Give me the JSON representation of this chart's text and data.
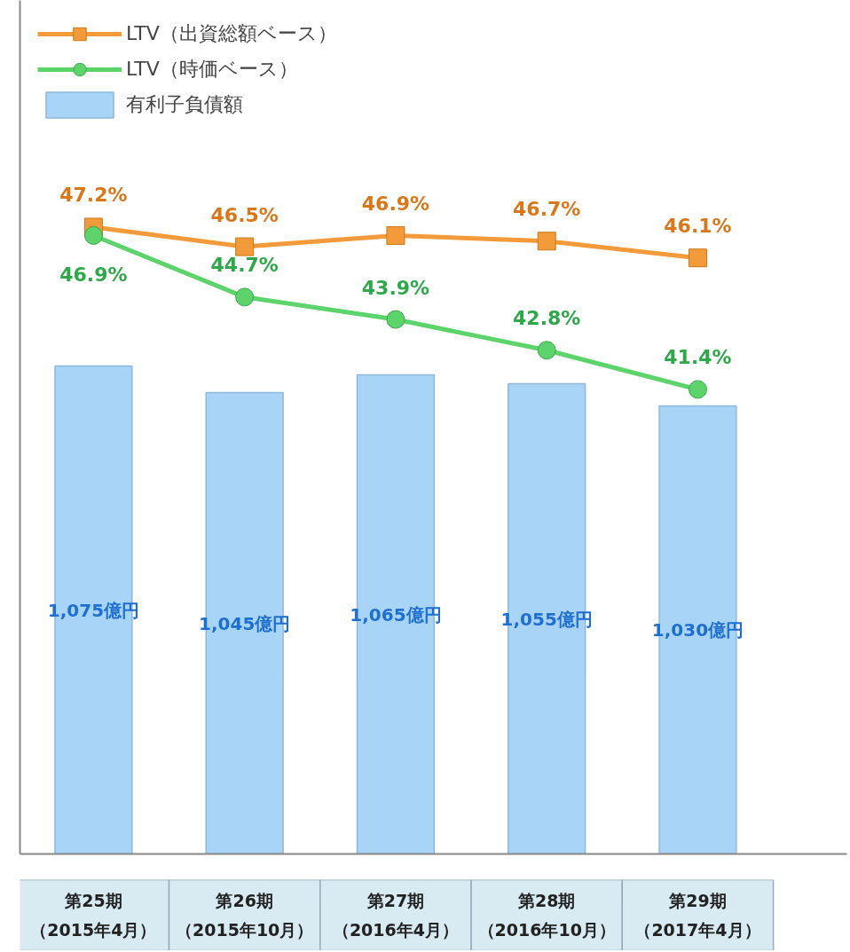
{
  "chart_data": {
    "type": "bar",
    "categories": [
      "第25期（2015年4月）",
      "第26期（2015年10月）",
      "第27期（2016年4月）",
      "第28期（2016年10月）",
      "第29期（2017年4月）"
    ],
    "series": [
      {
        "name": "LTV（出資総額ベース）",
        "type": "line",
        "axis": "y2",
        "color": "#f39a3a",
        "marker": "square",
        "values": [
          47.2,
          46.5,
          46.9,
          46.7,
          46.1
        ],
        "value_labels": [
          "47.2%",
          "46.5%",
          "46.9%",
          "46.7%",
          "46.1%"
        ]
      },
      {
        "name": "LTV（時価ベース）",
        "type": "line",
        "axis": "y2",
        "color": "#5dd36b",
        "marker": "circle",
        "values": [
          46.9,
          44.7,
          43.9,
          42.8,
          41.4
        ],
        "value_labels": [
          "46.9%",
          "44.7%",
          "43.9%",
          "42.8%",
          "41.4%"
        ]
      },
      {
        "name": "有利子負債額",
        "color": "#a8d4f7",
        "values": [
          1075,
          1045,
          1065,
          1055,
          1030
        ],
        "value_labels": [
          "1,075億円",
          "1,045億円",
          "1,065億円",
          "1,055億円",
          "1,030億円"
        ]
      }
    ],
    "ylim": [
      525,
      1487
    ],
    "y2lim": [
      24.8,
      55.3
    ],
    "legend": "top left"
  }
}
